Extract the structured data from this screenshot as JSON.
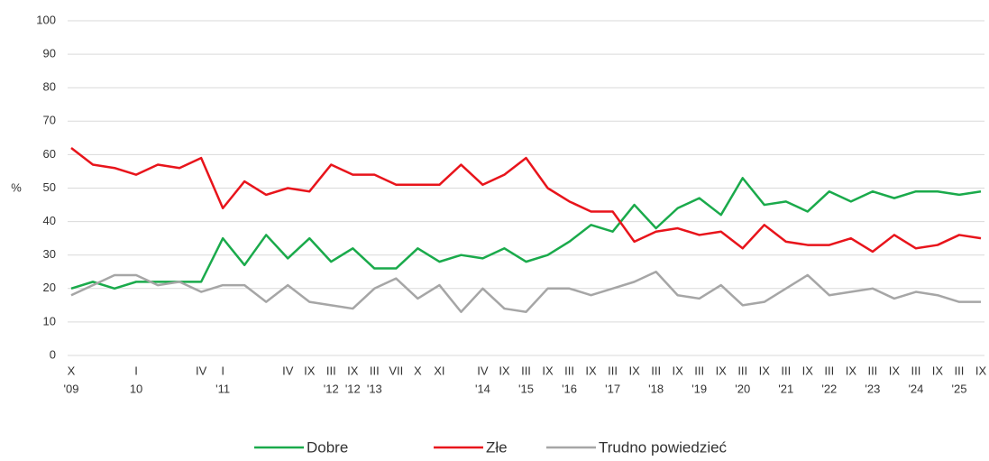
{
  "chart_data": {
    "type": "line",
    "ylabel": "%",
    "categories": [
      "X",
      null,
      null,
      "I",
      null,
      null,
      "IV",
      "I",
      null,
      null,
      "IV",
      "IX",
      "III",
      "IX",
      "III",
      "VII",
      "X",
      "XI",
      null,
      "IV",
      "IX",
      "III",
      "IX",
      "III",
      "IX",
      "III",
      "IX",
      "III",
      "IX",
      "III",
      "IX",
      "III",
      "IX",
      "III",
      "IX",
      "III",
      "IX",
      "III",
      "IX",
      "III",
      "IX",
      "III",
      "IX"
    ],
    "category_years": [
      "'09",
      null,
      null,
      "10",
      null,
      null,
      null,
      "'11",
      null,
      null,
      null,
      null,
      "'12",
      "'12",
      "'13",
      null,
      null,
      null,
      null,
      "'14",
      null,
      "'15",
      null,
      "'16",
      null,
      "'17",
      null,
      "'18",
      null,
      "'19",
      null,
      "'20",
      null,
      "'21",
      null,
      "'22",
      null,
      "'23",
      null,
      "'24",
      null,
      "'25",
      null
    ],
    "series": [
      {
        "name": "Dobre",
        "color": "#1aaa4b",
        "values": [
          20,
          22,
          20,
          22,
          22,
          22,
          22,
          35,
          27,
          36,
          29,
          35,
          28,
          32,
          26,
          26,
          32,
          28,
          30,
          29,
          32,
          28,
          30,
          34,
          39,
          37,
          45,
          38,
          44,
          47,
          42,
          53,
          45,
          46,
          43,
          49,
          46,
          49,
          47,
          49,
          49,
          48,
          49
        ]
      },
      {
        "name": "Złe",
        "color": "#e8141b",
        "values": [
          62,
          57,
          56,
          54,
          57,
          56,
          59,
          44,
          52,
          48,
          50,
          49,
          57,
          54,
          54,
          51,
          51,
          51,
          57,
          51,
          54,
          59,
          50,
          46,
          43,
          43,
          34,
          37,
          38,
          36,
          37,
          32,
          39,
          34,
          33,
          33,
          35,
          31,
          36,
          32,
          33,
          36,
          35
        ]
      },
      {
        "name": "Trudno powiedzieć",
        "color": "#a6a6a6",
        "values": [
          18,
          21,
          24,
          24,
          21,
          22,
          19,
          21,
          21,
          16,
          21,
          16,
          15,
          14,
          20,
          23,
          17,
          21,
          13,
          20,
          14,
          13,
          20,
          20,
          18,
          20,
          22,
          25,
          18,
          17,
          21,
          15,
          16,
          20,
          24,
          18,
          19,
          20,
          17,
          19,
          18,
          16,
          16
        ]
      }
    ],
    "ylim": [
      0,
      100
    ],
    "yticks": [
      0,
      10,
      20,
      30,
      40,
      50,
      60,
      70,
      80,
      90,
      100
    ],
    "grid": true
  }
}
